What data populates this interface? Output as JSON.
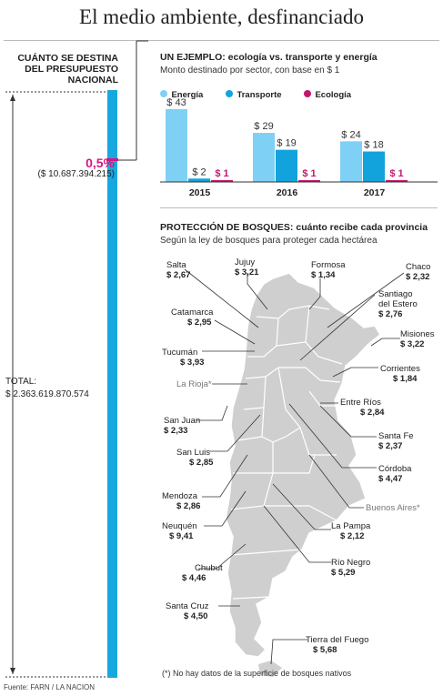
{
  "title": "El medio ambiente, desfinanciado",
  "left_panel": {
    "heading": "CUÁNTO SE DESTINA DEL PRESUPUESTO NACIONAL",
    "share": "0,5%",
    "share_amount": "($ 10.687.394.215)",
    "total_label": "TOTAL:",
    "total_amount": "$ 2.363.619.870.574",
    "bar_color": "#18a8e0",
    "share_color": "#d6167e"
  },
  "example": {
    "heading": "UN EJEMPLO: ecología vs. transporte y energía",
    "subtitle": "Monto destinado por sector, con base en $ 1"
  },
  "chart_data": {
    "type": "bar",
    "categories": [
      "2015",
      "2016",
      "2017"
    ],
    "series": [
      {
        "name": "Energía",
        "color": "#7fd0f5",
        "values": [
          43,
          29,
          24
        ],
        "labels": [
          "$ 43",
          "$ 29",
          "$ 24"
        ]
      },
      {
        "name": "Transporte",
        "color": "#12a3dc",
        "values": [
          2,
          19,
          18
        ],
        "labels": [
          "$ 2",
          "$ 19",
          "$ 18"
        ]
      },
      {
        "name": "Ecología",
        "color": "#c2176d",
        "values": [
          1,
          1,
          1
        ],
        "labels": [
          "$ 1",
          "$ 1",
          "$ 1"
        ]
      }
    ],
    "ylim": [
      0,
      43
    ],
    "legend": "top-left",
    "grid": false
  },
  "forests": {
    "heading": "PROTECCIÓN DE BOSQUES: cuánto recibe cada provincia",
    "subtitle": "Según la ley de bosques para proteger cada hectárea",
    "note": "(*) No hay datos de la superficie de bosques nativos",
    "map_color": "#cfcfcf",
    "provinces": [
      {
        "name": "Salta",
        "value": "$ 2,67"
      },
      {
        "name": "Jujuy",
        "value": "$ 3,21"
      },
      {
        "name": "Formosa",
        "value": "$ 1,34"
      },
      {
        "name": "Chaco",
        "value": "$ 2,32"
      },
      {
        "name": "Catamarca",
        "value": "$ 2,95"
      },
      {
        "name": "Santiago del Estero",
        "value": "$ 2,76"
      },
      {
        "name": "Misiones",
        "value": "$ 3,22"
      },
      {
        "name": "Tucumán",
        "value": "$ 3,93"
      },
      {
        "name": "Corrientes",
        "value": "$ 1,84"
      },
      {
        "name": "La Rioja*",
        "value": ""
      },
      {
        "name": "Entre Ríos",
        "value": "$ 2,84"
      },
      {
        "name": "San Juan",
        "value": "$ 2,33"
      },
      {
        "name": "Santa Fe",
        "value": "$ 2,37"
      },
      {
        "name": "San Luis",
        "value": "$ 2,85"
      },
      {
        "name": "Córdoba",
        "value": "$ 4,47"
      },
      {
        "name": "Mendoza",
        "value": "$ 2,86"
      },
      {
        "name": "Buenos Aires*",
        "value": ""
      },
      {
        "name": "Neuquén",
        "value": "$ 9,41"
      },
      {
        "name": "La Pampa",
        "value": "$ 2,12"
      },
      {
        "name": "Río Negro",
        "value": "$ 5,29"
      },
      {
        "name": "Chubut",
        "value": "$ 4,46"
      },
      {
        "name": "Santa Cruz",
        "value": "$ 4,50"
      },
      {
        "name": "Tierra del Fuego",
        "value": "$ 5,68"
      }
    ]
  },
  "source": "Fuente: FARN / LA NACION"
}
